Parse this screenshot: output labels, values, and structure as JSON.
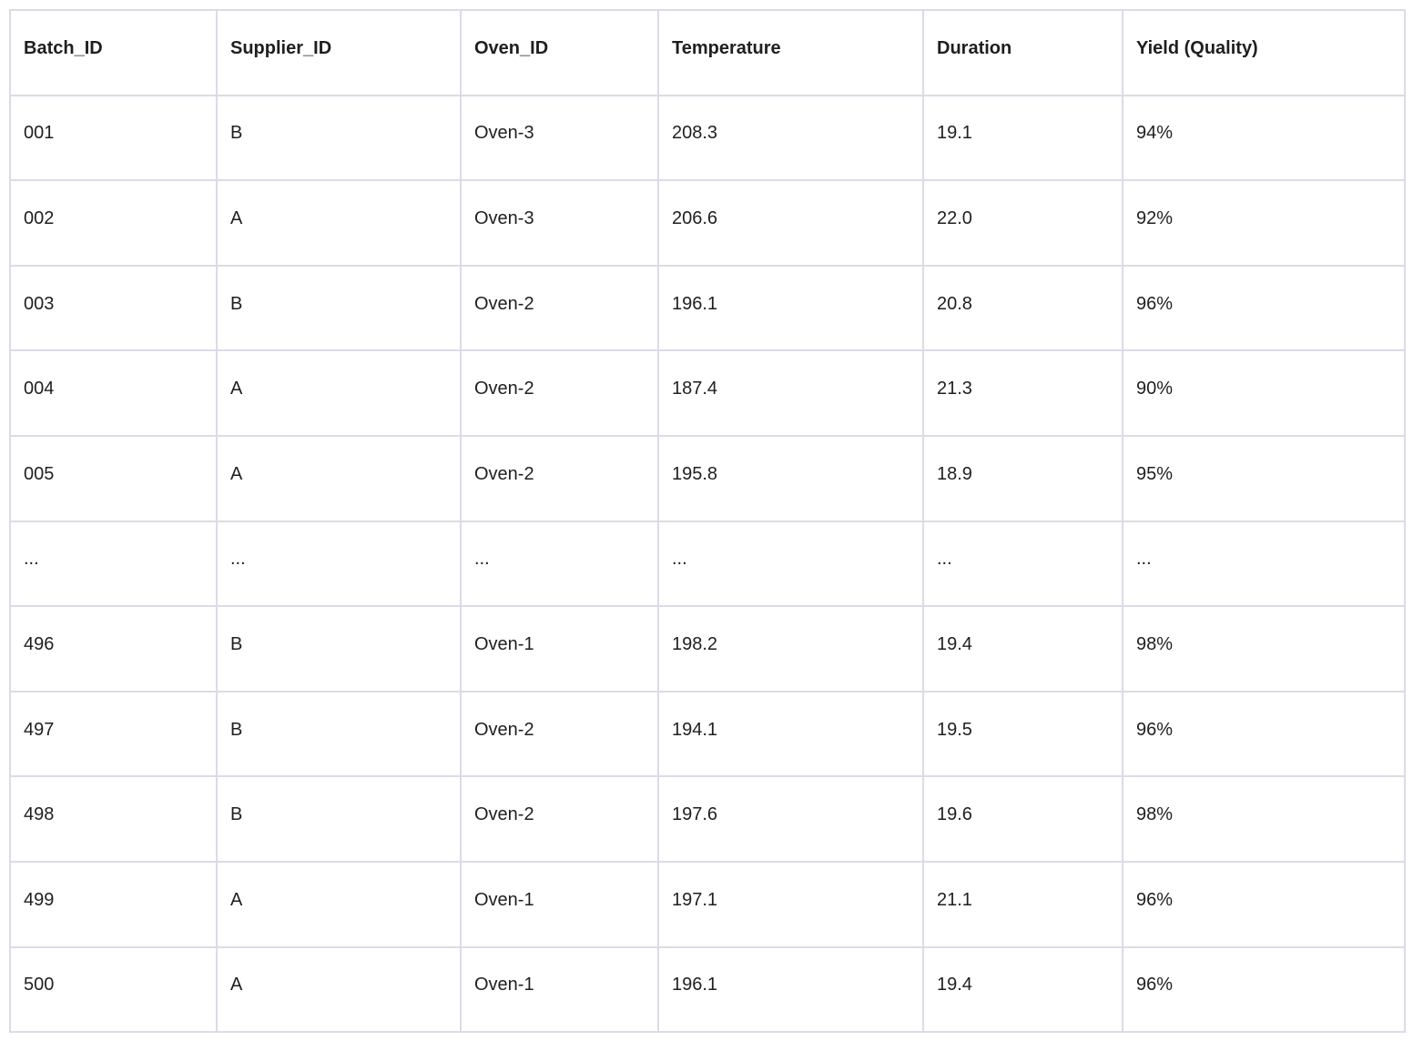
{
  "table": {
    "columns": [
      "Batch_ID",
      "Supplier_ID",
      "Oven_ID",
      "Temperature",
      "Duration",
      "Yield (Quality)"
    ],
    "rows": [
      [
        "001",
        "B",
        "Oven-3",
        "208.3",
        "19.1",
        "94%"
      ],
      [
        "002",
        "A",
        "Oven-3",
        "206.6",
        "22.0",
        "92%"
      ],
      [
        "003",
        "B",
        "Oven-2",
        "196.1",
        "20.8",
        "96%"
      ],
      [
        "004",
        "A",
        "Oven-2",
        "187.4",
        "21.3",
        "90%"
      ],
      [
        "005",
        "A",
        "Oven-2",
        "195.8",
        "18.9",
        "95%"
      ],
      [
        "...",
        "...",
        "...",
        "...",
        "...",
        "..."
      ],
      [
        "496",
        "B",
        "Oven-1",
        "198.2",
        "19.4",
        "98%"
      ],
      [
        "497",
        "B",
        "Oven-2",
        "194.1",
        "19.5",
        "96%"
      ],
      [
        "498",
        "B",
        "Oven-2",
        "197.6",
        "19.6",
        "98%"
      ],
      [
        "499",
        "A",
        "Oven-1",
        "197.1",
        "21.1",
        "96%"
      ],
      [
        "500",
        "A",
        "Oven-1",
        "196.1",
        "19.4",
        "96%"
      ]
    ],
    "colors": {
      "border": "#dadce6",
      "text": "#1f1f1f",
      "background": "#ffffff"
    }
  }
}
